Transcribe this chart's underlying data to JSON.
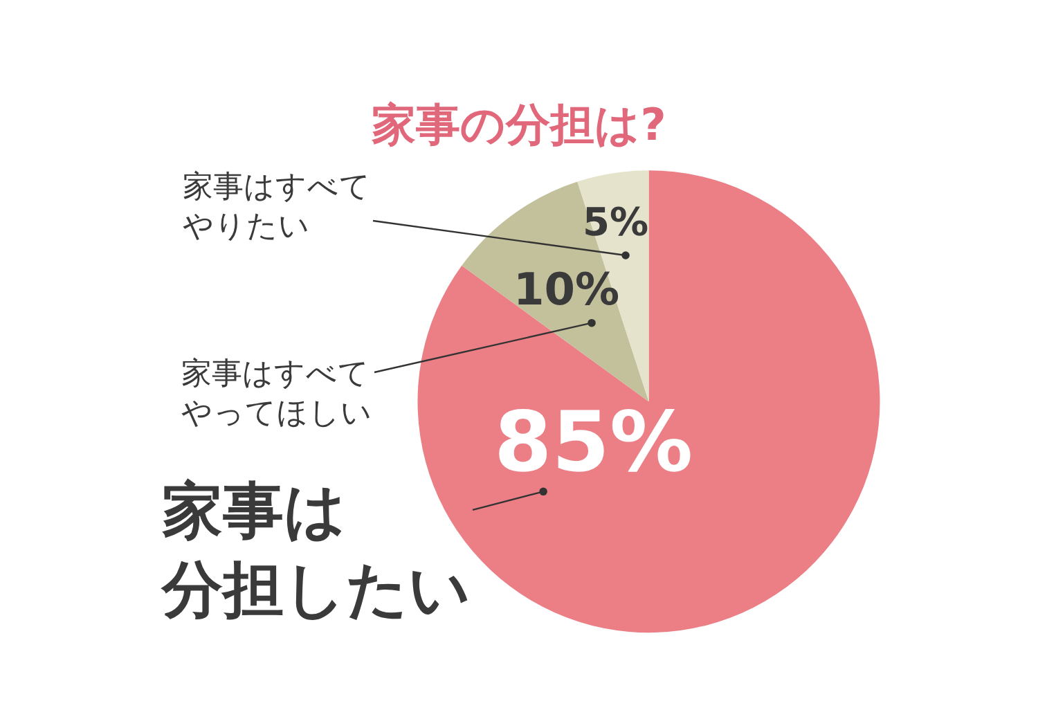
{
  "chart_data": {
    "type": "pie",
    "title": "家事の分担は?",
    "categories": [
      "家事は分担したい",
      "家事はすべてやってほしい",
      "家事はすべてやりたい"
    ],
    "values": [
      85,
      10,
      5
    ],
    "value_labels": [
      "85%",
      "10%",
      "5%"
    ],
    "colors": [
      "#ec7f86",
      "#c3c19c",
      "#e5e3cc"
    ],
    "legend": false
  }
}
